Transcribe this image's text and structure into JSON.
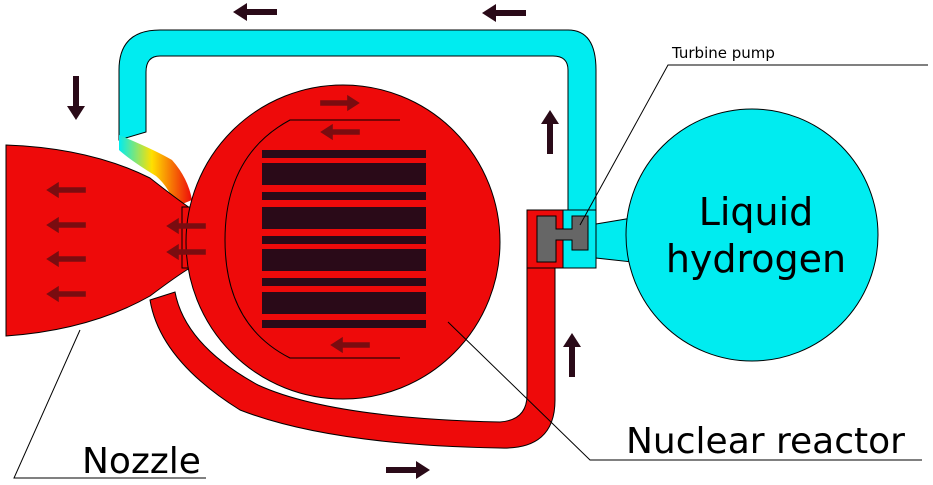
{
  "labels": {
    "turbine_pump": "Turbine pump",
    "liquid_hydrogen_line1": "Liquid",
    "liquid_hydrogen_line2": "hydrogen",
    "nuclear_reactor": "Nuclear reactor",
    "nozzle": "Nozzle"
  },
  "colors": {
    "hot": "#ee0a0a",
    "cold": "#00ecf0",
    "rods": "#2a0a18",
    "pump": "#666666",
    "arrow_dark": "#2a0a18",
    "arrow_maroon": "#7a0c10",
    "transition_yellow": "#ffe000",
    "outline": "#000000"
  },
  "icons": {
    "flow_arrow": "arrow-icon"
  }
}
